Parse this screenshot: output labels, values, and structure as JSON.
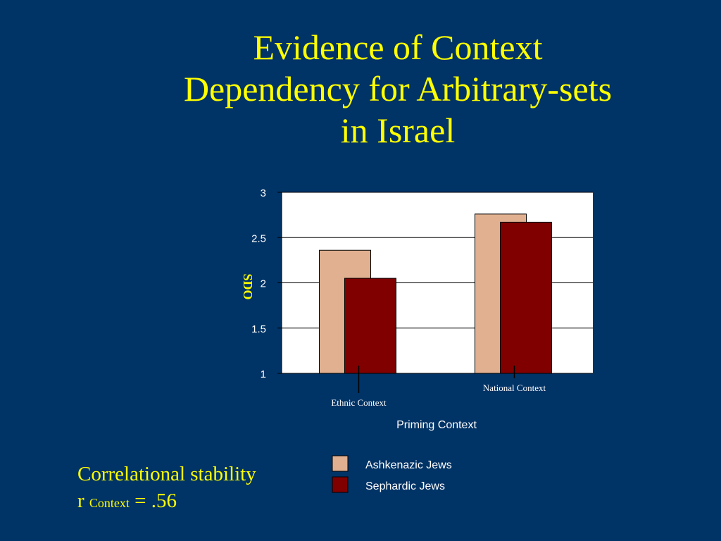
{
  "slide": {
    "title_lines": [
      "Evidence of Context",
      "Dependency for Arbitrary-sets",
      "in Israel"
    ]
  },
  "note": {
    "line1": "Correlational stability",
    "r_label": "r",
    "r_subscript": "Context",
    "r_value": "= .56"
  },
  "colors": {
    "background": "#003366",
    "title": "#ffff00",
    "plot_area": "#ffffff",
    "axis_text": "#ffffff",
    "ylabel": "#ffff00"
  },
  "chart_data": {
    "type": "bar",
    "title": "",
    "xlabel": "Priming Context",
    "ylabel": "SDO",
    "ylim": [
      1,
      3
    ],
    "yticks": [
      "1",
      "1.5",
      "2",
      "2.5",
      "3"
    ],
    "categories": [
      "Ethnic Context",
      "National Context"
    ],
    "series": [
      {
        "name": "Ashkenazic Jews",
        "color": "#e0b090",
        "values": [
          2.36,
          2.76
        ]
      },
      {
        "name": "Sephardic Jews",
        "color": "#800000",
        "values": [
          2.05,
          2.67
        ]
      }
    ],
    "grid": true,
    "legend": "bottom"
  }
}
